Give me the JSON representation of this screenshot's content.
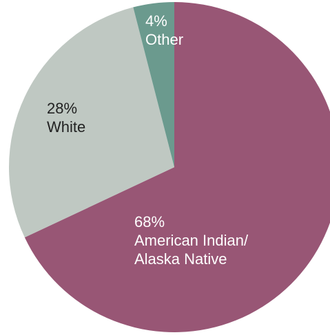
{
  "chart_data": {
    "type": "pie",
    "slices": [
      {
        "label": "American Indian/ Alaska Native",
        "label_lines": [
          "American Indian/",
          "Alaska Native"
        ],
        "value": 68,
        "value_text": "68%",
        "color": "#985675",
        "label_color": "#ffffff"
      },
      {
        "label": "White",
        "label_lines": [
          "White"
        ],
        "value": 28,
        "value_text": "28%",
        "color": "#bfc8c2",
        "label_color": "#222222"
      },
      {
        "label": "Other",
        "label_lines": [
          "Other"
        ],
        "value": 4,
        "value_text": "4%",
        "color": "#6b9a8e",
        "label_color": "#ffffff"
      }
    ],
    "start_angle_deg": 0,
    "direction": "clockwise"
  }
}
